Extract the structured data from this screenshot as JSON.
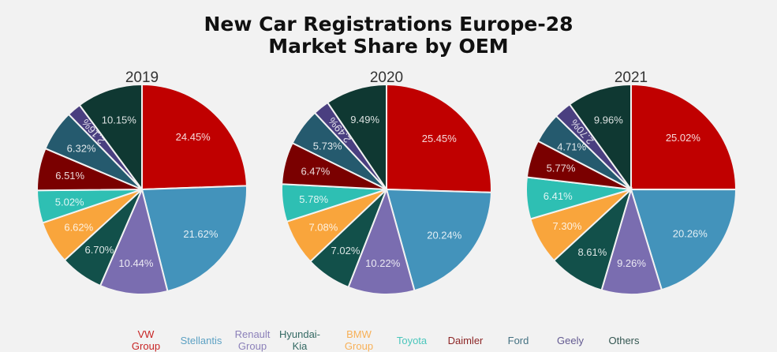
{
  "chart_data": [
    {
      "type": "pie",
      "title": "2019",
      "categories": [
        "VW Group",
        "Stellantis",
        "Renault Group",
        "Hyundai-Kia",
        "BMW Group",
        "Toyota",
        "Daimler",
        "Ford",
        "Geely",
        "Others"
      ],
      "values": [
        24.45,
        21.62,
        10.44,
        6.7,
        6.62,
        5.02,
        6.51,
        6.32,
        2.16,
        10.15
      ],
      "labels": [
        "24.45%",
        "21.62%",
        "10.44%",
        "6.70%",
        "6.62%",
        "5.02%",
        "6.51%",
        "6.32%",
        "2.16%",
        "10.15%"
      ]
    },
    {
      "type": "pie",
      "title": "2020",
      "categories": [
        "VW Group",
        "Stellantis",
        "Renault Group",
        "Hyundai-Kia",
        "BMW Group",
        "Toyota",
        "Daimler",
        "Ford",
        "Geely",
        "Others"
      ],
      "values": [
        25.45,
        20.24,
        10.22,
        7.02,
        7.08,
        5.78,
        6.47,
        5.73,
        2.49,
        9.49
      ],
      "labels": [
        "25.45%",
        "20.24%",
        "10.22%",
        "7.02%",
        "7.08%",
        "5.78%",
        "6.47%",
        "5.73%",
        "2.49%",
        "9.49%"
      ]
    },
    {
      "type": "pie",
      "title": "2021",
      "categories": [
        "VW Group",
        "Stellantis",
        "Renault Group",
        "Hyundai-Kia",
        "BMW Group",
        "Toyota",
        "Daimler",
        "Ford",
        "Geely",
        "Others"
      ],
      "values": [
        25.02,
        20.26,
        9.26,
        8.61,
        7.3,
        6.41,
        5.77,
        4.71,
        2.7,
        9.96
      ],
      "labels": [
        "25.02%",
        "20.26%",
        "9.26%",
        "8.61%",
        "7.30%",
        "6.41%",
        "5.77%",
        "4.71%",
        "2.70%",
        "9.96%"
      ]
    }
  ],
  "title_line1": "New Car Registrations Europe-28",
  "title_line2": "Market Share by OEM",
  "legend_position": "bottom",
  "legend": [
    {
      "label": "VW\nGroup",
      "color": "#c00000"
    },
    {
      "label": "Stellantis",
      "color": "#4393bb"
    },
    {
      "label": "Renault\nGroup",
      "color": "#7a6db0"
    },
    {
      "label": "Hyundai-\nKia",
      "color": "#12504a"
    },
    {
      "label": "BMW\nGroup",
      "color": "#f9a53c"
    },
    {
      "label": "Toyota",
      "color": "#2ebfb3"
    },
    {
      "label": "Daimler",
      "color": "#7a0000"
    },
    {
      "label": "Ford",
      "color": "#255a6e"
    },
    {
      "label": "Geely",
      "color": "#4a3f80"
    },
    {
      "label": "Others",
      "color": "#0f3832"
    }
  ]
}
